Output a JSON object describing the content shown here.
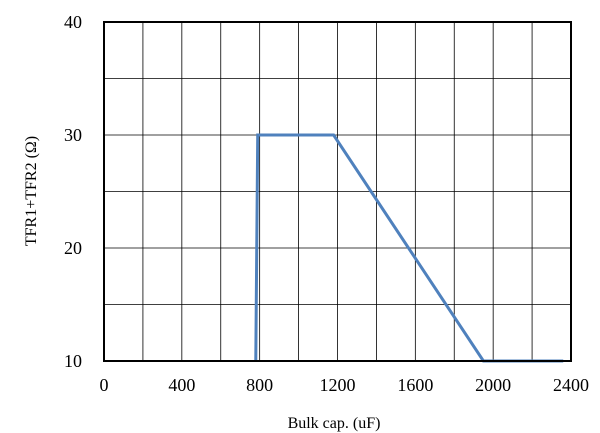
{
  "chart_data": {
    "type": "line",
    "title": "",
    "xlabel": "Bulk cap. (uF)",
    "ylabel": "TFR1+TFR2 (Ω)",
    "xlim": [
      0,
      2400
    ],
    "ylim": [
      10,
      40
    ],
    "x_ticks": [
      0,
      400,
      800,
      1200,
      1600,
      2000,
      2400
    ],
    "y_ticks": [
      10,
      20,
      30,
      40
    ],
    "x_grid_step": 200,
    "y_grid_step": 5,
    "grid": true,
    "line_color": "#4f81bd",
    "series": [
      {
        "x": [
          780,
          790,
          1180,
          1950,
          2360
        ],
        "y": [
          10,
          30,
          30,
          10,
          10
        ]
      }
    ]
  }
}
